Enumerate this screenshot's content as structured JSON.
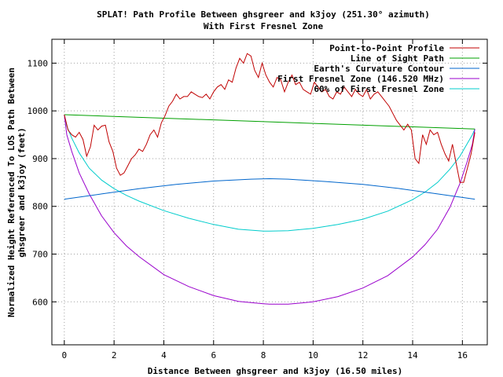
{
  "chart_data": {
    "type": "line",
    "title": "SPLAT! Path Profile Between ghsgreer and k3joy (251.30° azimuth)",
    "subtitle": "With First Fresnel Zone",
    "xlabel": "Distance Between ghsgreer and k3joy (16.50 miles)",
    "ylabel_line1": "Normalized Height Referenced To LOS Path Between",
    "ylabel_line2": "ghsgreer and k3joy (feet)",
    "xlim": [
      -0.5,
      17
    ],
    "ylim": [
      510,
      1150
    ],
    "xticks": [
      0,
      2,
      4,
      6,
      8,
      10,
      12,
      14,
      16
    ],
    "yticks": [
      600,
      700,
      800,
      900,
      1000,
      1100
    ],
    "grid": true,
    "legend_position": "top-right",
    "series": [
      {
        "name": "Point-to-Point Profile",
        "color": "#c00000",
        "x": [
          0,
          0.15,
          0.3,
          0.45,
          0.6,
          0.75,
          0.9,
          1.05,
          1.2,
          1.35,
          1.5,
          1.65,
          1.8,
          1.95,
          2.1,
          2.25,
          2.4,
          2.55,
          2.7,
          2.85,
          3.0,
          3.15,
          3.3,
          3.45,
          3.6,
          3.75,
          3.9,
          4.05,
          4.2,
          4.35,
          4.5,
          4.65,
          4.8,
          4.95,
          5.1,
          5.25,
          5.4,
          5.55,
          5.7,
          5.85,
          6.0,
          6.15,
          6.3,
          6.45,
          6.6,
          6.75,
          6.9,
          7.05,
          7.2,
          7.35,
          7.5,
          7.65,
          7.8,
          7.95,
          8.1,
          8.25,
          8.4,
          8.55,
          8.7,
          8.85,
          9.0,
          9.15,
          9.3,
          9.45,
          9.6,
          9.75,
          9.9,
          10.05,
          10.2,
          10.35,
          10.5,
          10.65,
          10.8,
          10.95,
          11.1,
          11.25,
          11.4,
          11.55,
          11.7,
          11.85,
          12.0,
          12.15,
          12.3,
          12.45,
          12.6,
          12.75,
          12.9,
          13.05,
          13.2,
          13.35,
          13.5,
          13.65,
          13.8,
          13.95,
          14.1,
          14.25,
          14.4,
          14.55,
          14.7,
          14.85,
          15.0,
          15.15,
          15.3,
          15.45,
          15.6,
          15.75,
          15.9,
          16.05,
          16.2,
          16.35,
          16.5
        ],
        "values": [
          992,
          960,
          950,
          945,
          955,
          940,
          905,
          925,
          970,
          960,
          968,
          970,
          935,
          915,
          880,
          865,
          870,
          885,
          900,
          908,
          920,
          915,
          930,
          950,
          960,
          945,
          975,
          990,
          1010,
          1020,
          1035,
          1025,
          1030,
          1030,
          1040,
          1035,
          1030,
          1028,
          1035,
          1025,
          1040,
          1050,
          1055,
          1045,
          1065,
          1060,
          1090,
          1110,
          1100,
          1120,
          1115,
          1085,
          1070,
          1100,
          1075,
          1060,
          1050,
          1070,
          1065,
          1040,
          1060,
          1075,
          1055,
          1060,
          1045,
          1040,
          1035,
          1060,
          1050,
          1040,
          1045,
          1030,
          1025,
          1040,
          1035,
          1050,
          1040,
          1030,
          1045,
          1035,
          1030,
          1045,
          1025,
          1035,
          1040,
          1030,
          1020,
          1010,
          995,
          980,
          970,
          960,
          972,
          960,
          900,
          890,
          950,
          930,
          960,
          950,
          955,
          930,
          910,
          895,
          930,
          890,
          850,
          850,
          880,
          910,
          955
        ]
      },
      {
        "name": "Line of Sight Path",
        "color": "#00a000",
        "x": [
          0,
          16.5
        ],
        "values": [
          992,
          962
        ]
      },
      {
        "name": "Earth's Curvature Contour",
        "color": "#0066cc",
        "x": [
          0,
          1.5,
          3,
          4.5,
          6,
          7.5,
          8.25,
          9,
          10.5,
          12,
          13.5,
          15,
          16.5
        ],
        "values": [
          815,
          826,
          837,
          846,
          853,
          857,
          858,
          857,
          852,
          846,
          837,
          826,
          815
        ]
      },
      {
        "name": "First Fresnel Zone (146.520 MHz)",
        "color": "#9900cc",
        "x": [
          0,
          0.1,
          0.3,
          0.6,
          1,
          1.5,
          2,
          2.5,
          3,
          4,
          5,
          6,
          7,
          8,
          8.25,
          9,
          10,
          11,
          12,
          13,
          14,
          14.5,
          15,
          15.5,
          15.9,
          16.2,
          16.4,
          16.5
        ],
        "values": [
          992,
          950,
          915,
          870,
          826,
          780,
          745,
          717,
          695,
          657,
          632,
          613,
          601,
          596,
          595,
          595,
          600,
          611,
          629,
          655,
          694,
          720,
          752,
          798,
          848,
          895,
          930,
          962
        ]
      },
      {
        "name": "60% of First Fresnel Zone",
        "color": "#00cccc",
        "x": [
          0,
          0.1,
          0.3,
          0.6,
          1,
          1.5,
          2,
          2.5,
          3,
          4,
          5,
          6,
          7,
          8,
          8.25,
          9,
          10,
          11,
          12,
          13,
          14,
          14.5,
          15,
          15.5,
          15.9,
          16.2,
          16.4,
          16.5
        ],
        "values": [
          992,
          968,
          943,
          912,
          880,
          855,
          837,
          823,
          811,
          791,
          775,
          762,
          752,
          748,
          748,
          749,
          754,
          762,
          773,
          790,
          814,
          830,
          850,
          878,
          905,
          932,
          950,
          962
        ]
      }
    ]
  }
}
